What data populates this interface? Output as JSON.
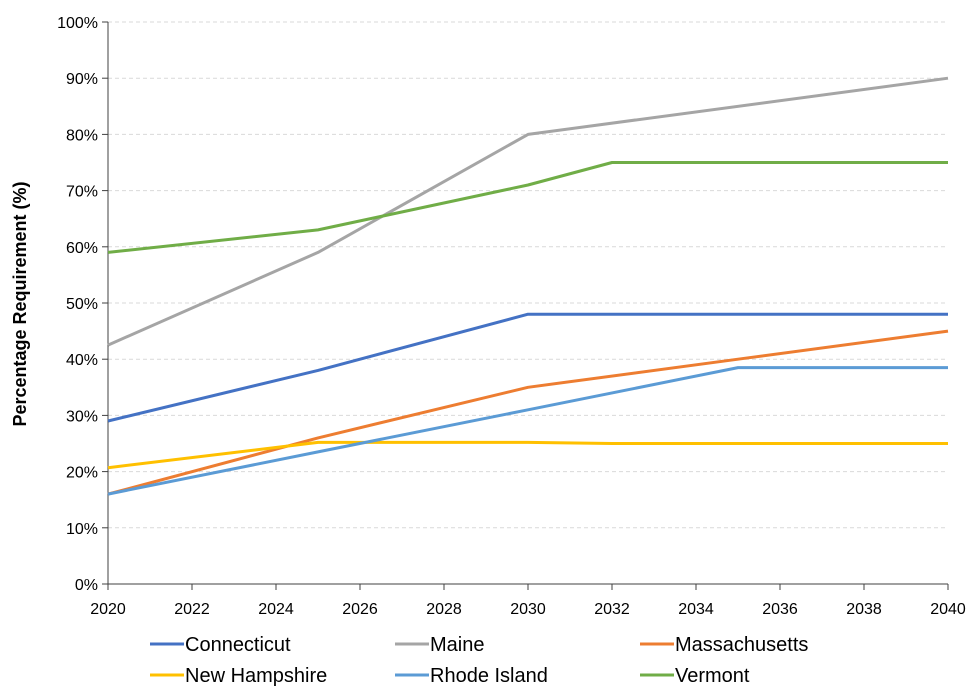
{
  "chart_data": {
    "type": "line",
    "title": "",
    "xlabel": "",
    "ylabel": "Percentage Requirement (%)",
    "xlim": [
      2020,
      2040
    ],
    "ylim": [
      0,
      100
    ],
    "x_ticks": [
      "2020",
      "2022",
      "2024",
      "2026",
      "2028",
      "2030",
      "2032",
      "2034",
      "2036",
      "2038",
      "2040"
    ],
    "y_ticks": [
      "0%",
      "10%",
      "20%",
      "30%",
      "40%",
      "50%",
      "60%",
      "70%",
      "80%",
      "90%",
      "100%"
    ],
    "grid": "horizontal-dashed",
    "legend_position": "bottom",
    "series": [
      {
        "name": "Connecticut",
        "color": "#4472C4",
        "points": [
          [
            2020,
            29
          ],
          [
            2025,
            38
          ],
          [
            2030,
            48
          ],
          [
            2040,
            48
          ]
        ]
      },
      {
        "name": "Maine",
        "color": "#A5A5A5",
        "points": [
          [
            2020,
            42.5
          ],
          [
            2025,
            59
          ],
          [
            2030,
            80
          ],
          [
            2040,
            90
          ]
        ]
      },
      {
        "name": "Massachusetts",
        "color": "#ED7D31",
        "points": [
          [
            2020,
            16
          ],
          [
            2025,
            26
          ],
          [
            2030,
            35
          ],
          [
            2035,
            40
          ],
          [
            2040,
            45
          ]
        ]
      },
      {
        "name": "New Hampshire",
        "color": "#FFC000",
        "points": [
          [
            2020,
            20.7
          ],
          [
            2025,
            25.2
          ],
          [
            2030,
            25.2
          ],
          [
            2032,
            25
          ],
          [
            2040,
            25
          ]
        ]
      },
      {
        "name": "Rhode Island",
        "color": "#5B9BD5",
        "points": [
          [
            2020,
            16
          ],
          [
            2025,
            23.5
          ],
          [
            2030,
            31
          ],
          [
            2035,
            38.5
          ],
          [
            2040,
            38.5
          ]
        ]
      },
      {
        "name": "Vermont",
        "color": "#70AD47",
        "points": [
          [
            2020,
            59
          ],
          [
            2025,
            63
          ],
          [
            2030,
            71
          ],
          [
            2032,
            75
          ],
          [
            2040,
            75
          ]
        ]
      }
    ]
  }
}
